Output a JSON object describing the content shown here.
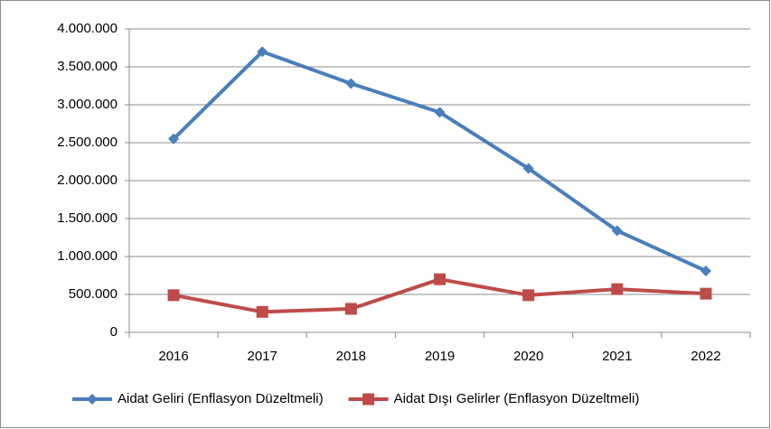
{
  "chart_data": {
    "type": "line",
    "categories": [
      "2016",
      "2017",
      "2018",
      "2019",
      "2020",
      "2021",
      "2022"
    ],
    "series": [
      {
        "name": "Aidat Geliri (Enflasyon Düzeltmeli)",
        "color": "#4a7ebb",
        "marker": "diamond",
        "values": [
          2550000,
          3700000,
          3280000,
          2900000,
          2160000,
          1340000,
          810000
        ]
      },
      {
        "name": "Aidat Dışı Gelirler (Enflasyon Düzeltmeli)",
        "color": "#be4b48",
        "marker": "square",
        "values": [
          490000,
          270000,
          310000,
          700000,
          490000,
          570000,
          510000
        ]
      }
    ],
    "ylim": [
      0,
      4000000
    ],
    "yticks": [
      0,
      {
        "value": 500000,
        "label": "500.000"
      },
      {
        "value": 1000000,
        "label": "1.000.000"
      },
      {
        "value": 1500000,
        "label": "1.500.000"
      },
      {
        "value": 2000000,
        "label": "2.000.000"
      },
      {
        "value": 2500000,
        "label": "2.500.000"
      },
      {
        "value": 3000000,
        "label": "3.000.000"
      },
      {
        "value": 3500000,
        "label": "3.500.000"
      },
      {
        "value": 4000000,
        "label": "4.000.000"
      }
    ],
    "grid": true,
    "legend": "bottom"
  }
}
